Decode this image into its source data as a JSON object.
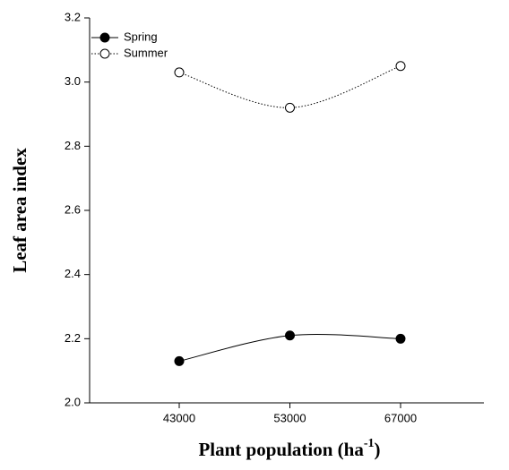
{
  "chart_data": {
    "type": "line",
    "y_label": "Leaf area index",
    "x_label": "Plant population (ha",
    "x_label_sup": "-1",
    "x_label_end": ")",
    "categories": [
      "43000",
      "53000",
      "67000"
    ],
    "series": [
      {
        "name": "Spring",
        "color": "#000000",
        "marker": "filled",
        "dash": "solid",
        "values": [
          2.13,
          2.21,
          2.2
        ]
      },
      {
        "name": "Summer",
        "color": "#000000",
        "marker": "open",
        "dash": "dotted",
        "values": [
          3.03,
          2.92,
          3.05
        ]
      }
    ],
    "ylim": [
      2.0,
      3.2
    ],
    "yticks": [
      {
        "value": 2.0,
        "label": "2.0"
      },
      2.2,
      2.4,
      2.6,
      2.8,
      {
        "value": 3.0,
        "label": "3.0"
      },
      3.2
    ],
    "legend": "upper-left",
    "grid": false
  }
}
